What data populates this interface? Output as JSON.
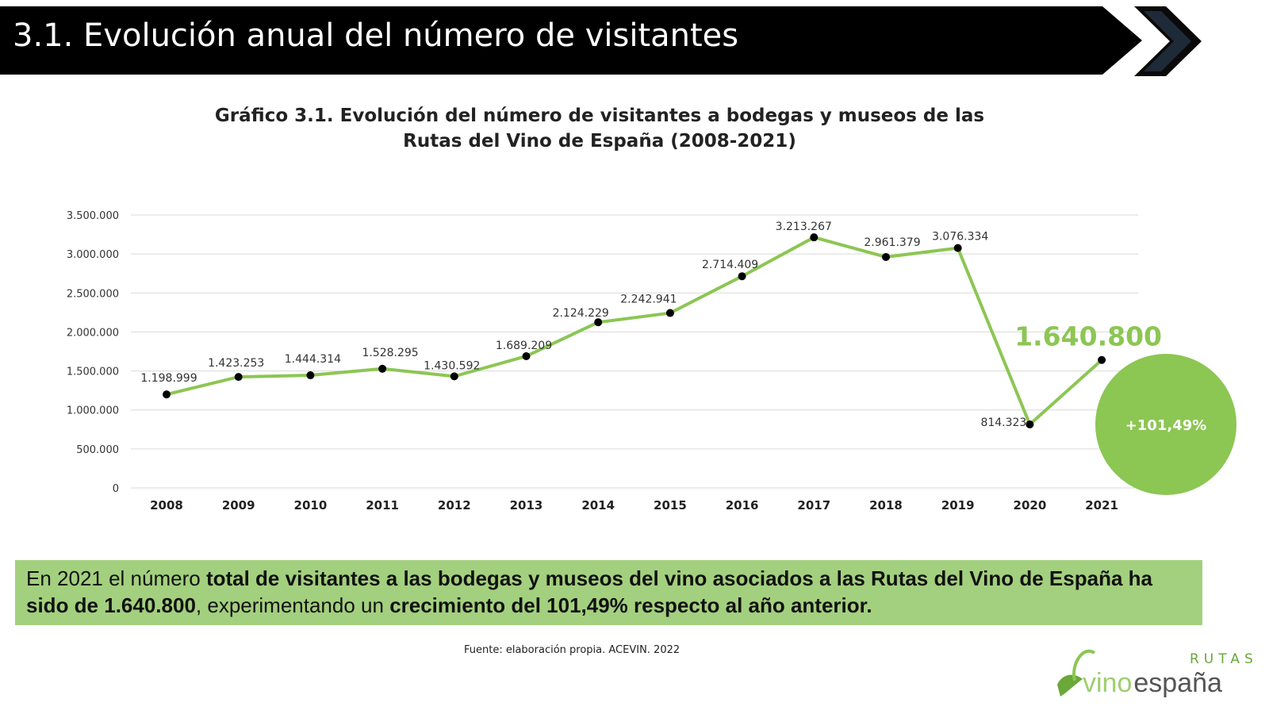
{
  "header": {
    "title": "3.1. Evolución anual del número de visitantes"
  },
  "chart_data": {
    "type": "line",
    "title_line1": "Gráfico 3.1. Evolución del número de visitantes a bodegas y museos de las",
    "title_line2": "Rutas del Vino de España (2008-2021)",
    "categories": [
      "2008",
      "2009",
      "2010",
      "2011",
      "2012",
      "2013",
      "2014",
      "2015",
      "2016",
      "2017",
      "2018",
      "2019",
      "2020",
      "2021"
    ],
    "values": [
      1198999,
      1423253,
      1444314,
      1528295,
      1430592,
      1689209,
      2124229,
      2242941,
      2714409,
      3213267,
      2961379,
      3076334,
      814323,
      1640800
    ],
    "data_labels": [
      "1.198.999",
      "1.423.253",
      "1.444.314",
      "1.528.295",
      "1.430.592",
      "1.689.209",
      "2.124.229",
      "2.242.941",
      "2.714.409",
      "3.213.267",
      "2.961.379",
      "3.076.334",
      "814.323",
      "1.640.800"
    ],
    "ylim": [
      0,
      3500000
    ],
    "yticks": [
      0,
      500000,
      1000000,
      1500000,
      2000000,
      2500000,
      3000000,
      3500000
    ],
    "ytick_labels": [
      "0",
      "500.000",
      "1.000.000",
      "1.500.000",
      "2.000.000",
      "2.500.000",
      "3.000.000",
      "3.500.000"
    ],
    "grid": true,
    "line_color": "#8cc653",
    "highlight_color": "#8cc653",
    "growth_badge": "+101,49%"
  },
  "summary": {
    "p1": "En 2021 el número ",
    "b1": "total de visitantes a las bodegas y museos del vino asociados a las Rutas del Vino de España ha sido de 1.640.800",
    "p2": ", experimentando un ",
    "b2": "crecimiento del 101,49% respecto al año anterior."
  },
  "source": "Fuente: elaboración propia. ACEVIN. 2022",
  "logo": {
    "text_rutas": "RUTAS",
    "text_vino": "vino",
    "text_espana": "españa"
  }
}
